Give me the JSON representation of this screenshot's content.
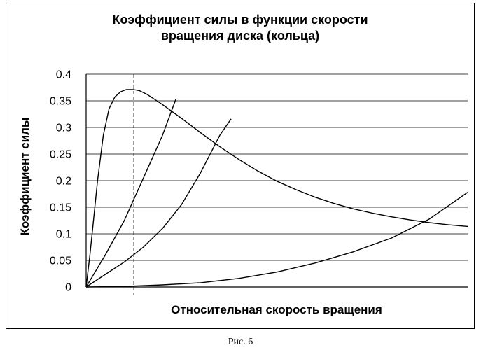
{
  "chart_data": {
    "type": "line",
    "title_lines": [
      "Коэффициент силы в функции скорости",
      "вращения диска (кольца)"
    ],
    "xlabel": "Относительная скорость вращения",
    "ylabel": "Коэффициент силы",
    "ylim": [
      0,
      0.4
    ],
    "xlim": [
      0,
      1
    ],
    "y_ticks": [
      "0",
      "0.05",
      "0.1",
      "0.15",
      "0.2",
      "0.25",
      "0.3",
      "0.35",
      "0.4"
    ],
    "y_tick_values": [
      0,
      0.05,
      0.1,
      0.15,
      0.2,
      0.25,
      0.3,
      0.35,
      0.4
    ],
    "grid": "horizontal",
    "vertical_marker_x": 0.125,
    "series": [
      {
        "points": [
          [
            0,
            0
          ],
          [
            0.01,
            0.06
          ],
          [
            0.02,
            0.13
          ],
          [
            0.03,
            0.2
          ],
          [
            0.045,
            0.285
          ],
          [
            0.06,
            0.335
          ],
          [
            0.075,
            0.357
          ],
          [
            0.09,
            0.367
          ],
          [
            0.105,
            0.371
          ],
          [
            0.125,
            0.371
          ],
          [
            0.14,
            0.369
          ],
          [
            0.16,
            0.362
          ],
          [
            0.2,
            0.343
          ],
          [
            0.25,
            0.317
          ],
          [
            0.3,
            0.29
          ],
          [
            0.35,
            0.264
          ],
          [
            0.4,
            0.24
          ],
          [
            0.45,
            0.218
          ],
          [
            0.5,
            0.199
          ],
          [
            0.55,
            0.183
          ],
          [
            0.6,
            0.169
          ],
          [
            0.65,
            0.157
          ],
          [
            0.7,
            0.147
          ],
          [
            0.75,
            0.139
          ],
          [
            0.8,
            0.132
          ],
          [
            0.85,
            0.126
          ],
          [
            0.9,
            0.121
          ],
          [
            0.95,
            0.117
          ],
          [
            1,
            0.114
          ]
        ]
      },
      {
        "points": [
          [
            0,
            0
          ],
          [
            0.05,
            0.06
          ],
          [
            0.1,
            0.125
          ],
          [
            0.15,
            0.205
          ],
          [
            0.2,
            0.285
          ],
          [
            0.235,
            0.353
          ]
        ]
      },
      {
        "points": [
          [
            0,
            0
          ],
          [
            0.1,
            0.047
          ],
          [
            0.15,
            0.075
          ],
          [
            0.2,
            0.11
          ],
          [
            0.25,
            0.155
          ],
          [
            0.3,
            0.215
          ],
          [
            0.35,
            0.285
          ],
          [
            0.38,
            0.316
          ]
        ]
      },
      {
        "points": [
          [
            0,
            0
          ],
          [
            0.1,
            0.001
          ],
          [
            0.2,
            0.004
          ],
          [
            0.3,
            0.008
          ],
          [
            0.4,
            0.016
          ],
          [
            0.5,
            0.028
          ],
          [
            0.6,
            0.045
          ],
          [
            0.7,
            0.066
          ],
          [
            0.8,
            0.092
          ],
          [
            0.9,
            0.128
          ],
          [
            1,
            0.178
          ]
        ]
      }
    ]
  },
  "caption": "Рис. 6"
}
